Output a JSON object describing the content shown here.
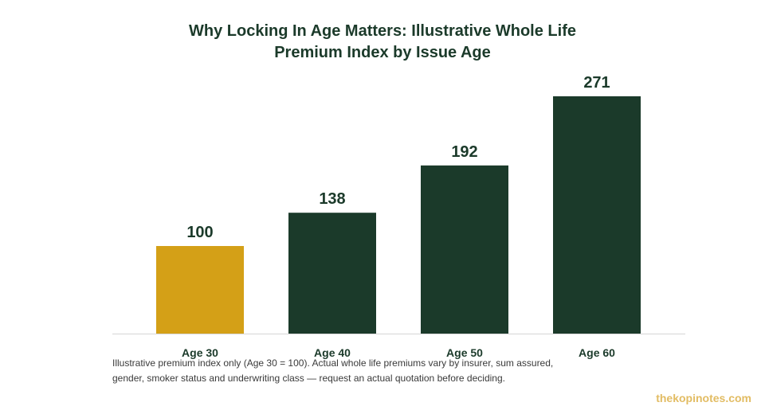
{
  "chart_data": {
    "type": "bar",
    "title_lines": [
      "Why Locking In Age Matters: Illustrative Whole Life",
      "Premium Index by Issue Age"
    ],
    "categories": [
      "Age 30",
      "Age 40",
      "Age 50",
      "Age 60"
    ],
    "values": [
      100,
      138,
      192,
      271
    ],
    "value_labels": [
      "100",
      "138",
      "192",
      "271"
    ],
    "colors": [
      "#d4a017",
      "#1b3a2a",
      "#1b3a2a",
      "#1b3a2a"
    ],
    "ylim": [
      0,
      290
    ],
    "grid": false,
    "xlabel": "",
    "ylabel": ""
  },
  "footnote": {
    "lines": [
      "Illustrative premium index only (Age 30 = 100). Actual whole life premiums vary by insurer, sum assured,",
      "gender, smoker status and underwriting class — request an actual quotation before deciding."
    ]
  },
  "watermark": "thekopinotes.com"
}
